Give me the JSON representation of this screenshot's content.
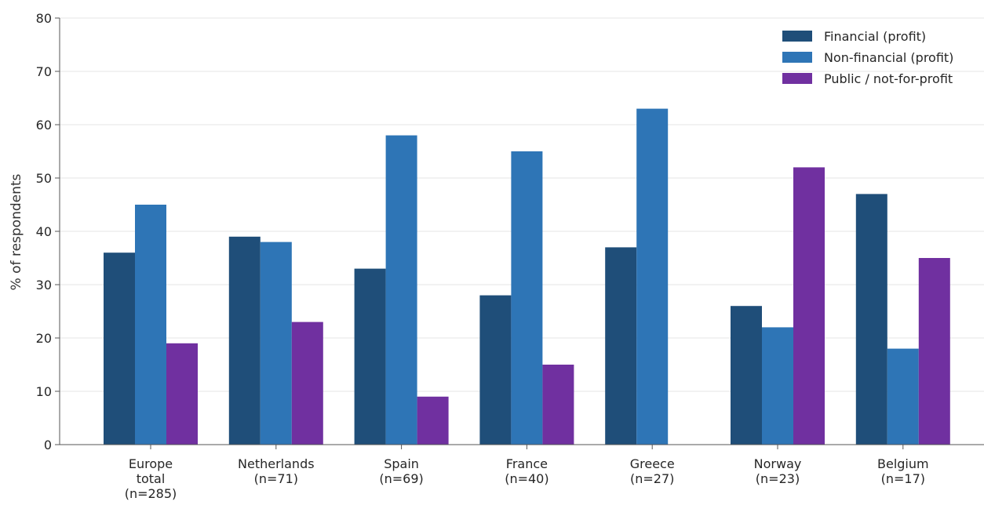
{
  "chart_data": {
    "type": "bar",
    "title": "",
    "xlabel": "",
    "ylabel": "% of respondents",
    "ylim": [
      0,
      80
    ],
    "yticks": [
      0,
      10,
      20,
      30,
      40,
      50,
      60,
      70,
      80
    ],
    "grid": "horizontal",
    "legend_position": "top-right",
    "categories": [
      [
        "Europe",
        "total",
        "(n=285)"
      ],
      [
        "Netherlands",
        "(n=71)"
      ],
      [
        "Spain",
        "(n=69)"
      ],
      [
        "France",
        "(n=40)"
      ],
      [
        "Greece",
        "(n=27)"
      ],
      [
        "Norway",
        "(n=23)"
      ],
      [
        "Belgium",
        "(n=17)"
      ]
    ],
    "series": [
      {
        "name": "Financial (profit)",
        "color": "#1f4e79",
        "values": [
          36,
          39,
          33,
          28,
          37,
          26,
          47
        ]
      },
      {
        "name": "Non-financial (profit)",
        "color": "#2e75b6",
        "values": [
          45,
          38,
          58,
          55,
          63,
          22,
          18
        ]
      },
      {
        "name": "Public / not-for-profit",
        "color": "#7030a0",
        "values": [
          19,
          23,
          9,
          15,
          0,
          52,
          35
        ]
      }
    ]
  }
}
